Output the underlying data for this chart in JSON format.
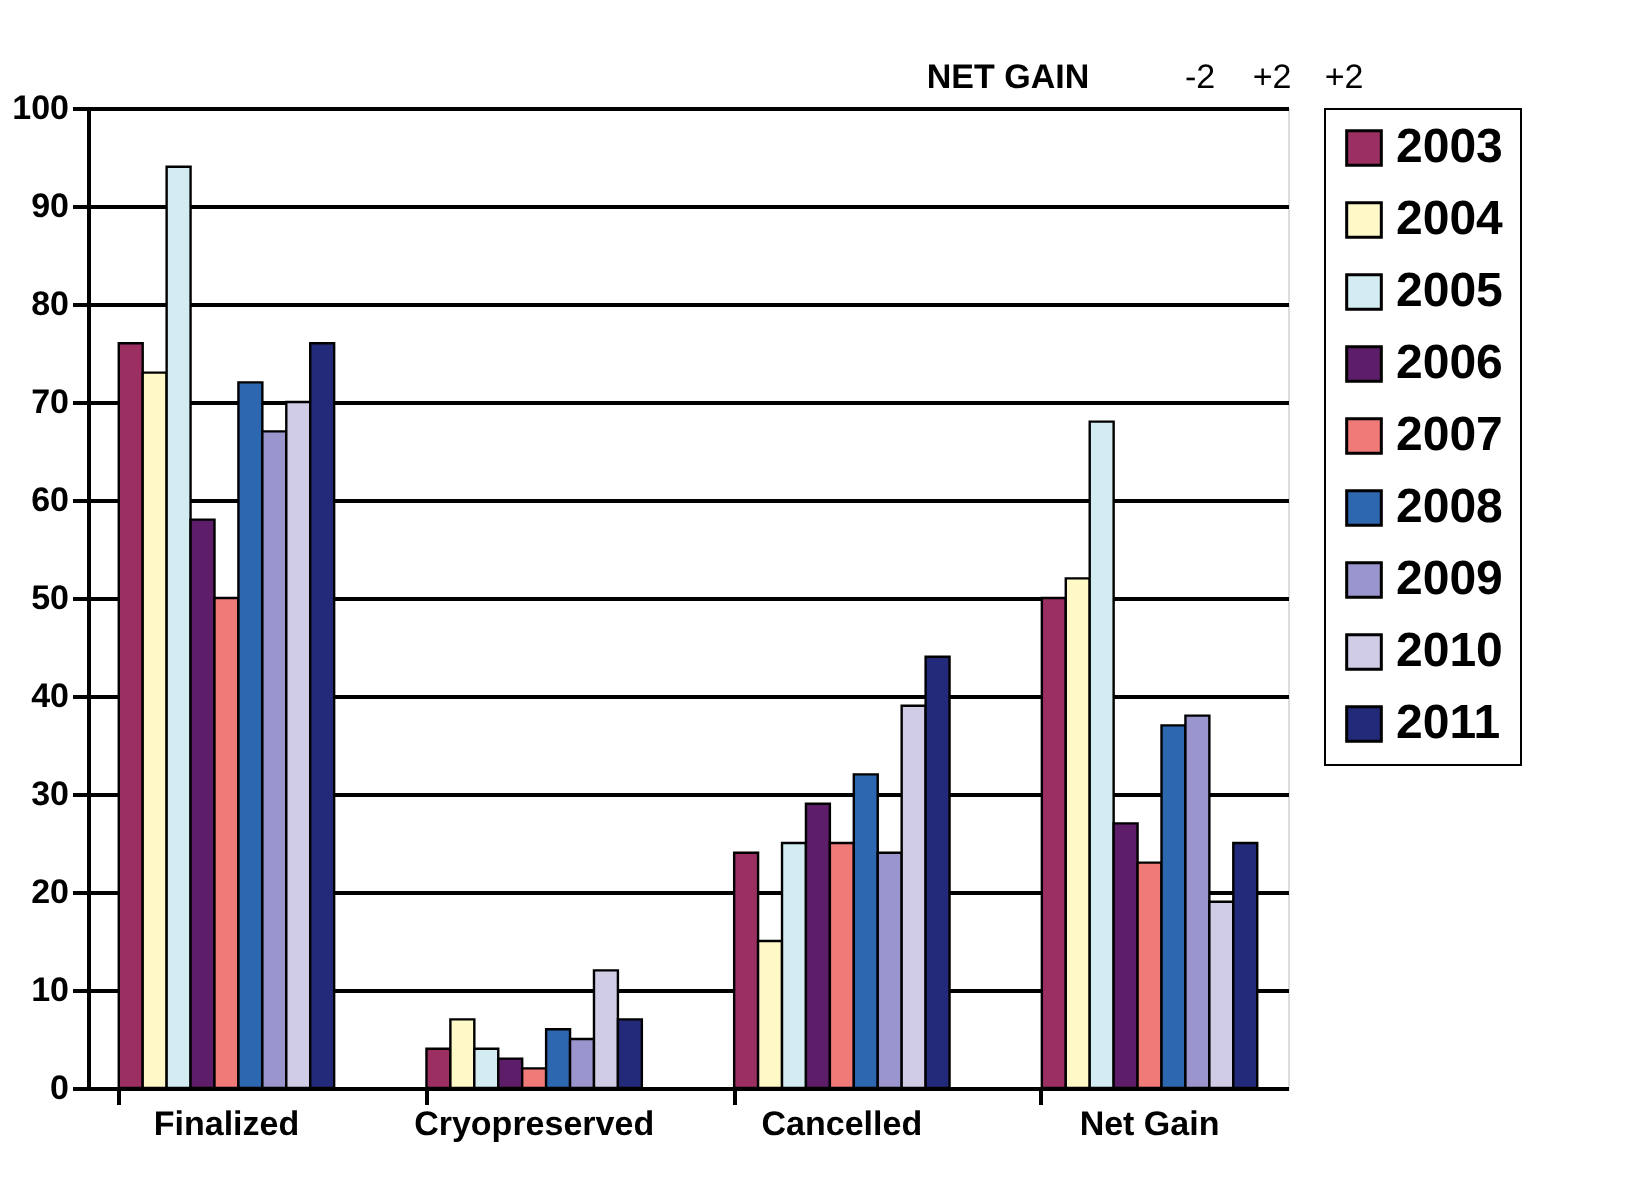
{
  "chart_data": {
    "type": "bar",
    "categories": [
      "Finalized",
      "Cryopreserved",
      "Cancelled",
      "Net Gain"
    ],
    "series": [
      {
        "name": "2003",
        "color": "#9b2f62",
        "values": [
          76,
          4,
          24,
          50
        ]
      },
      {
        "name": "2004",
        "color": "#fff9c8",
        "values": [
          73,
          7,
          15,
          52
        ]
      },
      {
        "name": "2005",
        "color": "#d2ecf2",
        "values": [
          94,
          4,
          25,
          68
        ]
      },
      {
        "name": "2006",
        "color": "#5e1d68",
        "values": [
          58,
          3,
          29,
          27
        ]
      },
      {
        "name": "2007",
        "color": "#f07a78",
        "values": [
          50,
          2,
          25,
          23
        ]
      },
      {
        "name": "2008",
        "color": "#2c67b0",
        "values": [
          72,
          6,
          32,
          37
        ]
      },
      {
        "name": "2009",
        "color": "#9a95cc",
        "values": [
          67,
          5,
          24,
          38
        ]
      },
      {
        "name": "2010",
        "color": "#d0cce6",
        "values": [
          70,
          12,
          39,
          19
        ]
      },
      {
        "name": "2011",
        "color": "#242a7a",
        "values": [
          76,
          7,
          44,
          25
        ]
      }
    ],
    "ylim": [
      0,
      100
    ],
    "yticks": [
      0,
      10,
      20,
      30,
      40,
      50,
      60,
      70,
      80,
      90,
      100
    ],
    "grid": "y",
    "legend": "right",
    "annotations": [
      "NET GAIN",
      "-2",
      "+2",
      "+2"
    ]
  }
}
